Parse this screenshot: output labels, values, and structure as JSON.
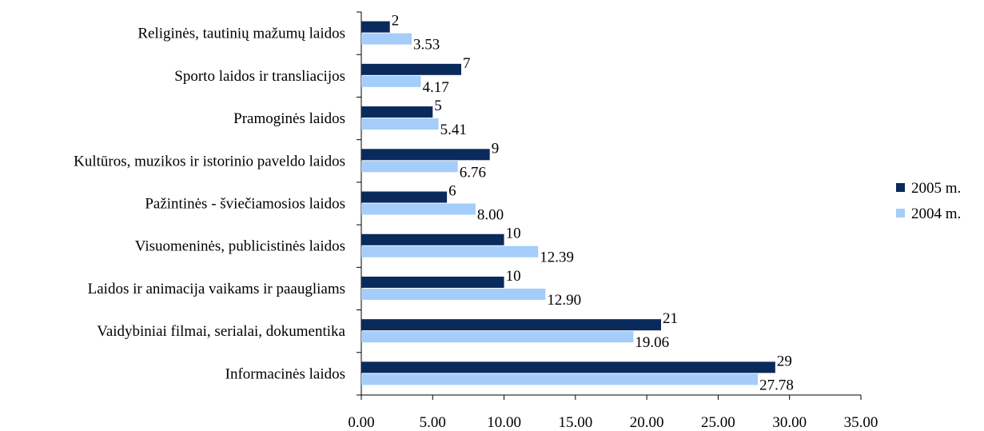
{
  "chart_data": {
    "type": "bar",
    "orientation": "horizontal",
    "categories": [
      "Religinės, tautinių mažumų laidos",
      "Sporto laidos ir transliacijos",
      "Pramoginės laidos",
      "Kultūros, muzikos ir istorinio paveldo laidos",
      "Pažintinės - šviečiamosios laidos",
      "Visuomeninės, publicistinės laidos",
      "Laidos ir animacija vaikams ir paaugliams",
      "Vaidybiniai filmai, serialai, dokumentika",
      "Informacinės laidos"
    ],
    "series": [
      {
        "name": "2005 m.",
        "color": "#0a2a5c",
        "values": [
          2,
          7,
          5,
          9,
          6,
          10,
          10,
          21,
          29
        ],
        "labels": [
          "2",
          "7",
          "5",
          "9",
          "6",
          "10",
          "10",
          "21",
          "29"
        ]
      },
      {
        "name": "2004 m.",
        "color": "#a4cdfa",
        "values": [
          3.53,
          4.17,
          5.41,
          6.76,
          8.0,
          12.39,
          12.9,
          19.06,
          27.78
        ],
        "labels": [
          "3.53",
          "4.17",
          "5.41",
          "6.76",
          "8.00",
          "12.39",
          "12.90",
          "19.06",
          "27.78"
        ]
      }
    ],
    "xlim": [
      0,
      35
    ],
    "x_ticks": [
      0,
      5,
      10,
      15,
      20,
      25,
      30,
      35
    ],
    "x_tick_labels": [
      "0.00",
      "5.00",
      "10.00",
      "15.00",
      "20.00",
      "25.00",
      "30.00",
      "35.00"
    ],
    "grid": false,
    "legend_position": "right",
    "title": "",
    "xlabel": "",
    "ylabel": ""
  }
}
